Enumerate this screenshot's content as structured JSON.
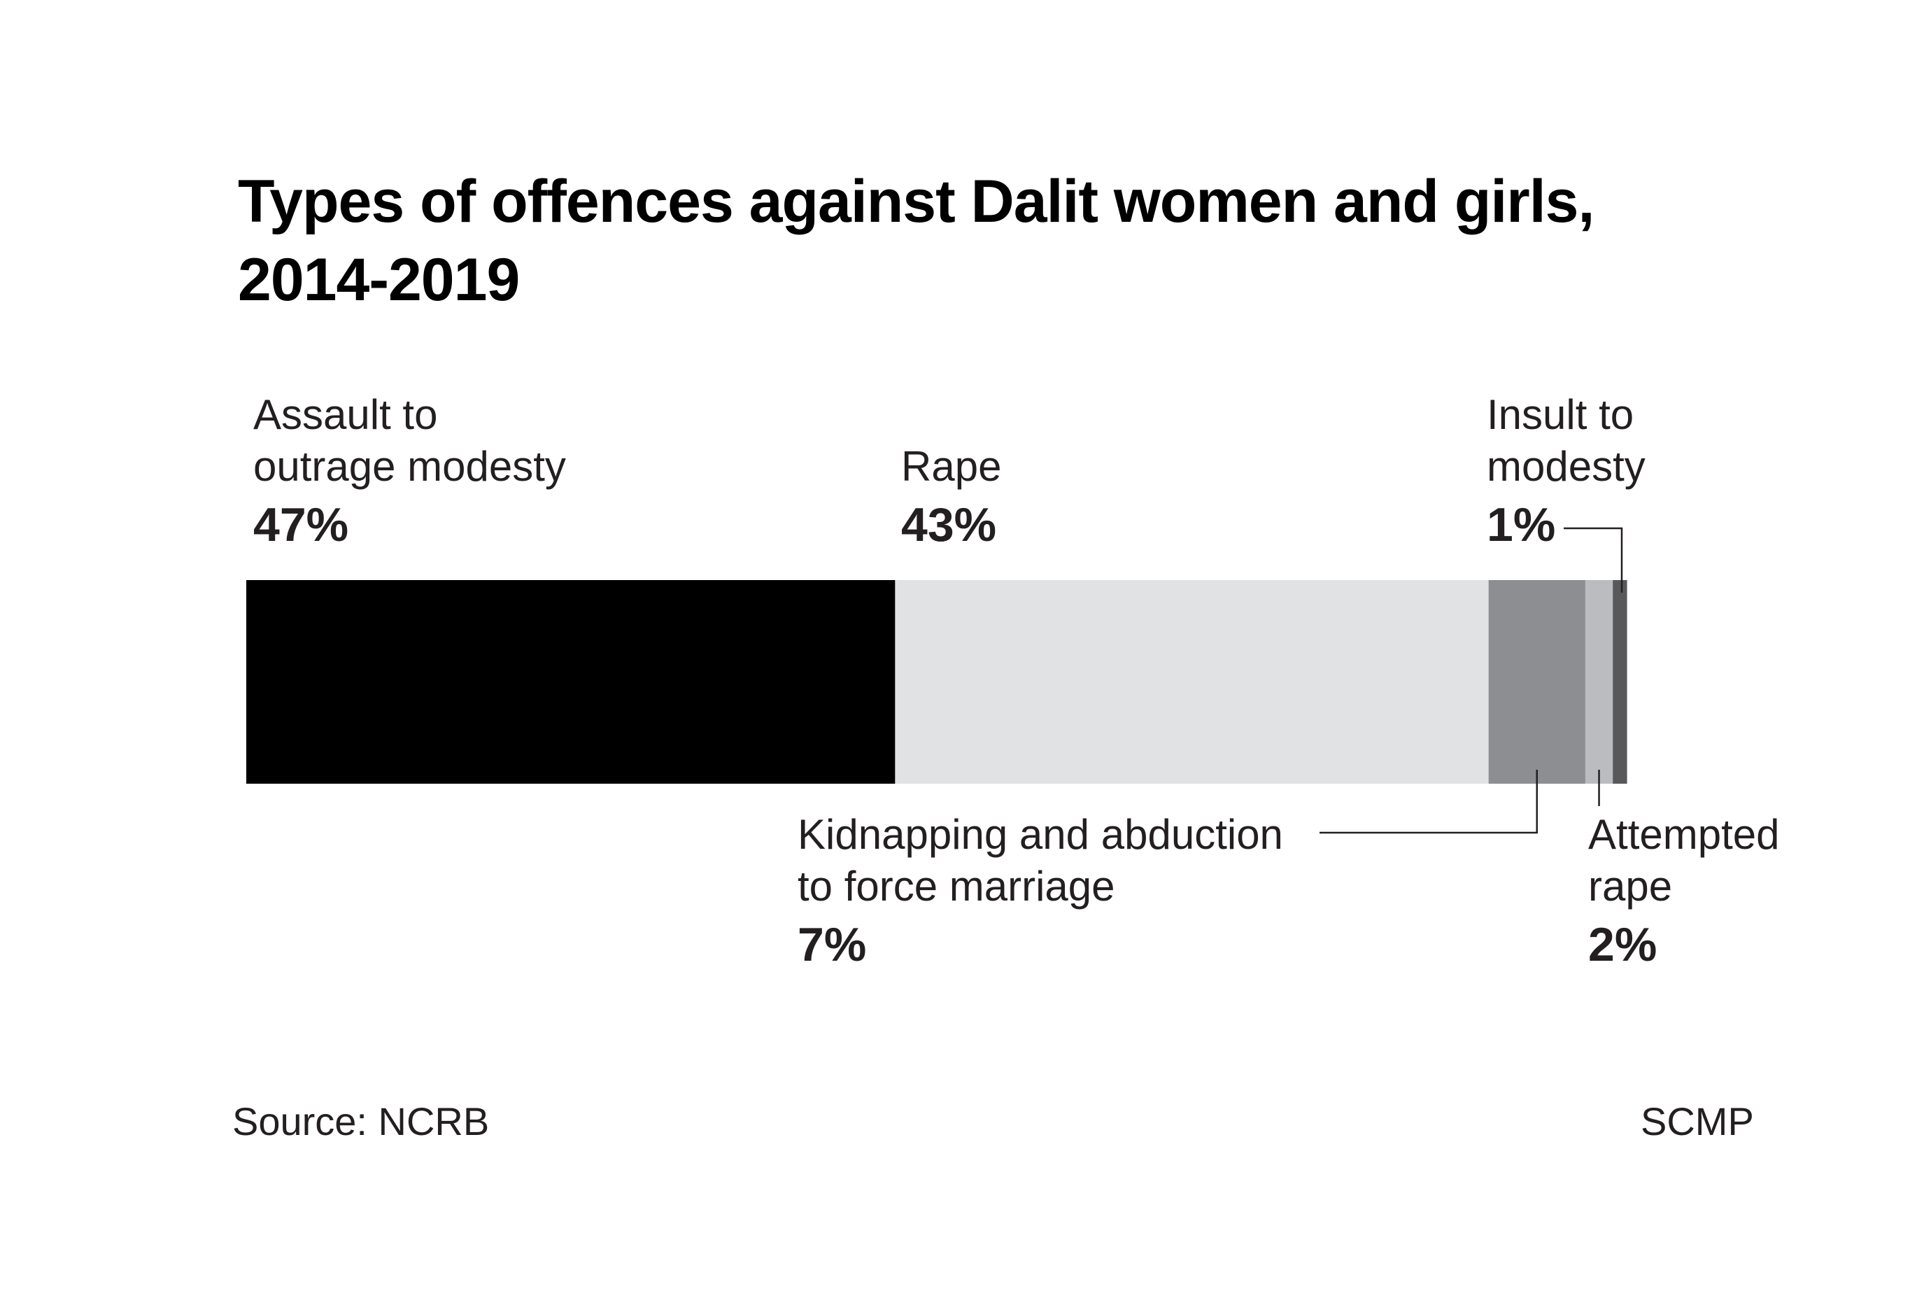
{
  "chart_data": {
    "type": "bar",
    "subtype": "stacked-100-horizontal",
    "title_lines": [
      "Types of offences against Dalit women and girls,",
      "2014-2019"
    ],
    "unit": "%",
    "series": [
      {
        "name_lines": [
          "Assault to",
          "outrage modesty"
        ],
        "value": 47,
        "value_label": "47%",
        "color": "#000000"
      },
      {
        "name_lines": [
          "Rape"
        ],
        "value": 43,
        "value_label": "43%",
        "color": "#e1e2e4"
      },
      {
        "name_lines": [
          "Kidnapping and abduction",
          "to force marriage"
        ],
        "value": 7,
        "value_label": "7%",
        "color": "#8d8e91"
      },
      {
        "name_lines": [
          "Attempted",
          "rape"
        ],
        "value": 2,
        "value_label": "2%",
        "color": "#bbbcbf"
      },
      {
        "name_lines": [
          "Insult to",
          "modesty"
        ],
        "value": 1,
        "value_label": "1%",
        "color": "#58585b"
      }
    ],
    "source": "Source: NCRB",
    "credit": "SCMP"
  }
}
